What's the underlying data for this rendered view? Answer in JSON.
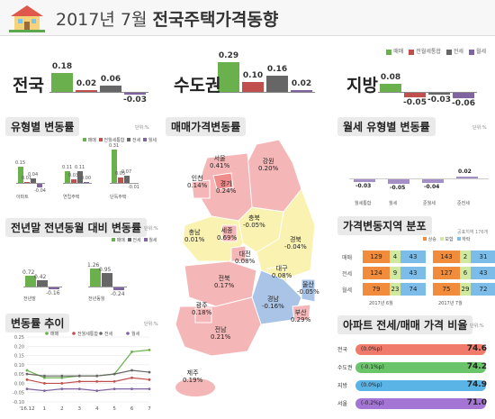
{
  "header": {
    "title_date": "2017년 7월",
    "title_main": "전국주택가격동향"
  },
  "colors": {
    "sale": "#6ab04c",
    "mixed": "#c0504d",
    "jeonse": "#666666",
    "rent": "#8064a2",
    "map_rise": "#f4b6b6",
    "map_flat": "#f9f2b0",
    "map_fall": "#a9c4e6"
  },
  "legend": [
    "매매",
    "전월세통합",
    "전세",
    "월세"
  ],
  "top_regions": {
    "chart_data": {
      "type": "bar",
      "categories": [
        "전국",
        "수도권",
        "지방"
      ],
      "series": [
        {
          "name": "매매",
          "values": [
            0.18,
            0.29,
            0.08
          ]
        },
        {
          "name": "전월세통합",
          "values": [
            0.02,
            0.1,
            -0.05
          ]
        },
        {
          "name": "전세",
          "values": [
            0.06,
            0.16,
            -0.03
          ]
        },
        {
          "name": "월세",
          "values": [
            -0.03,
            0.02,
            -0.06
          ]
        }
      ]
    },
    "labels": [
      [
        "0.18",
        "0.02",
        "0.06",
        "-0.03"
      ],
      [
        "0.29",
        "0.10",
        "0.16",
        "0.02"
      ],
      [
        "0.08",
        "-0.05",
        "-0.03",
        "-0.06"
      ]
    ]
  },
  "type_change": {
    "title": "유형별 변동률",
    "unit": "단위:%",
    "chart_data": {
      "type": "bar",
      "categories": [
        "아파트",
        "연립주택",
        "단독주택"
      ],
      "series": [
        {
          "name": "매매",
          "values": [
            0.15,
            0.11,
            0.31
          ]
        },
        {
          "name": "전월세통합",
          "values": [
            0.01,
            0.03,
            0.05
          ]
        },
        {
          "name": "전세",
          "values": [
            0.04,
            0.11,
            0.07
          ]
        },
        {
          "name": "월세",
          "values": [
            -0.04,
            0.0,
            -0.01
          ]
        }
      ]
    },
    "labels": [
      [
        "0.15",
        "0.01",
        "0.04",
        "-0.04"
      ],
      [
        "0.11",
        "0.03",
        "0.11",
        "0.00"
      ],
      [
        "0.31",
        "0.05",
        "0.07",
        "-0.01"
      ]
    ]
  },
  "yoy": {
    "title": "전년말 전년동월 대비 변동률",
    "unit": "단위:%",
    "legend": [
      "매매",
      "전세",
      "월세"
    ],
    "chart_data": {
      "type": "bar",
      "categories": [
        "전년말",
        "전년동월"
      ],
      "series": [
        {
          "name": "매매",
          "values": [
            0.72,
            1.26
          ]
        },
        {
          "name": "전세",
          "values": [
            0.42,
            0.95
          ]
        },
        {
          "name": "월세",
          "values": [
            -0.16,
            -0.24
          ]
        }
      ]
    },
    "labels": [
      [
        "0.72",
        "0.42",
        "-0.16"
      ],
      [
        "1.26",
        "0.95",
        "-0.24"
      ]
    ]
  },
  "trend": {
    "title": "변동률 추이",
    "unit": "단위:%",
    "legend": [
      "매매",
      "전월세통합",
      "전세",
      "월세"
    ],
    "chart_data": {
      "type": "line",
      "x": [
        "'16.12",
        "1",
        "2",
        "3",
        "4",
        "5",
        "6",
        "7"
      ],
      "yticks": [
        "0.25",
        "0.20",
        "0.15",
        "0.10",
        "0.05",
        "0.00",
        "-0.05",
        "-0.10"
      ],
      "ylim": [
        -0.1,
        0.25
      ],
      "series": [
        {
          "name": "매매",
          "values": [
            0.07,
            0.03,
            0.03,
            0.04,
            0.04,
            0.05,
            0.17,
            0.18
          ]
        },
        {
          "name": "전월세통합",
          "values": [
            0.02,
            0.0,
            0.0,
            0.01,
            0.01,
            0.01,
            0.03,
            0.02
          ]
        },
        {
          "name": "전세",
          "values": [
            0.05,
            0.04,
            0.04,
            0.04,
            0.04,
            0.05,
            0.07,
            0.06
          ]
        },
        {
          "name": "월세",
          "values": [
            -0.03,
            -0.04,
            -0.03,
            -0.03,
            -0.04,
            -0.03,
            -0.03,
            -0.03
          ]
        }
      ]
    }
  },
  "map": {
    "title": "매매가격변동률",
    "regions": [
      {
        "name": "서울",
        "value": "0.41%"
      },
      {
        "name": "인천",
        "value": "0.14%"
      },
      {
        "name": "경기",
        "value": "0.24%"
      },
      {
        "name": "강원",
        "value": "0.20%"
      },
      {
        "name": "충남",
        "value": "0.01%"
      },
      {
        "name": "세종",
        "value": "0.69%"
      },
      {
        "name": "충북",
        "value": "-0.05%"
      },
      {
        "name": "대전",
        "value": "0.08%"
      },
      {
        "name": "경북",
        "value": "-0.04%"
      },
      {
        "name": "전북",
        "value": "0.17%"
      },
      {
        "name": "대구",
        "value": "0.08%"
      },
      {
        "name": "울산",
        "value": "-0.05%"
      },
      {
        "name": "경남",
        "value": "-0.16%"
      },
      {
        "name": "광주",
        "value": "0.18%"
      },
      {
        "name": "부산",
        "value": "0.29%"
      },
      {
        "name": "전남",
        "value": "0.21%"
      },
      {
        "name": "제주",
        "value": "0.19%"
      }
    ]
  },
  "rent_type": {
    "title": "월세 유형별 변동률",
    "unit": "단위:%",
    "chart_data": {
      "type": "bar",
      "categories": [
        "월세통합",
        "월세",
        "준월세",
        "준전세"
      ],
      "values": [
        -0.03,
        -0.05,
        -0.04,
        0.02
      ]
    },
    "labels": [
      "-0.03",
      "-0.05",
      "-0.04",
      "0.02"
    ]
  },
  "dist": {
    "title": "가격변동지역 분포",
    "unit": "공표지역 176개",
    "legend": [
      "상승",
      "보합",
      "하락"
    ],
    "periods": [
      "2017년 6월",
      "2017년 7월"
    ],
    "rows": [
      {
        "label": "매매",
        "m6": [
          "129",
          "4",
          "43"
        ],
        "m7": [
          "143",
          "2",
          "31"
        ]
      },
      {
        "label": "전세",
        "m6": [
          "124",
          "9",
          "43"
        ],
        "m7": [
          "127",
          "6",
          "43"
        ]
      },
      {
        "label": "월세",
        "m6": [
          "79",
          "23",
          "74"
        ],
        "m7": [
          "75",
          "29",
          "72"
        ]
      }
    ]
  },
  "ratio": {
    "title": "아파트 전세/매매 가격 비율",
    "unit": "단위:%",
    "rows": [
      {
        "label": "전국",
        "change": "(0.0%p)",
        "value": "74.6",
        "color": "#f07b6b"
      },
      {
        "label": "수도권",
        "change": "(-0.1%p)",
        "value": "74.2",
        "color": "#6ac46a"
      },
      {
        "label": "지방",
        "change": "(0.0%p)",
        "value": "74.9",
        "color": "#5ab4e6"
      },
      {
        "label": "서울",
        "change": "(-0.2%p)",
        "value": "71.0",
        "color": "#a575d6"
      }
    ]
  }
}
